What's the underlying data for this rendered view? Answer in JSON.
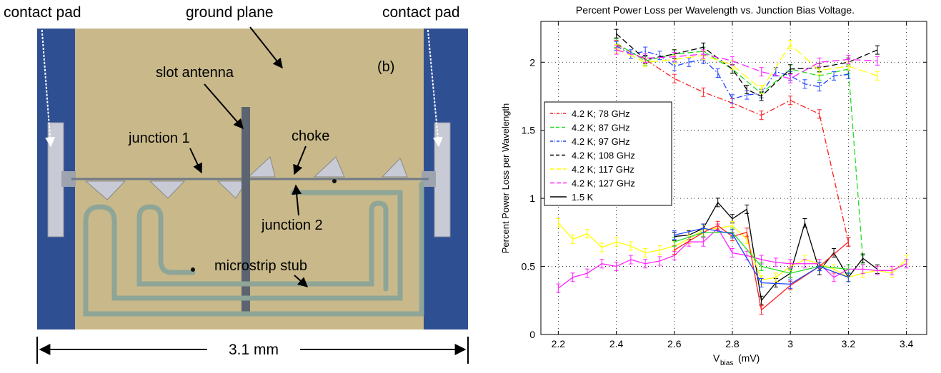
{
  "photo": {
    "panel_label": "(b)",
    "labels": {
      "contact_pad_left": "contact pad",
      "ground_plane": "ground plane",
      "contact_pad_right": "contact pad",
      "slot_antenna": "slot antenna",
      "junction_1": "junction 1",
      "choke": "choke",
      "junction_2": "junction 2",
      "microstrip_stub": "microstrip stub"
    },
    "scale_bar": "3.1 mm",
    "colors": {
      "substrate": "#c9b98a",
      "pad_blue": "#2f4f93",
      "metal": "#c8cbd6",
      "antenna": "#5b6470"
    }
  },
  "chart_data": {
    "type": "line",
    "title": "Percent Power Loss per Wavelength vs. Junction Bias Voltage.",
    "xlabel_main": "V",
    "xlabel_sub": "bias",
    "xlabel_unit": "(mV)",
    "ylabel": "Percent Power Loss per Wavelength",
    "xlim": [
      2.14,
      3.47
    ],
    "ylim": [
      0,
      2.3
    ],
    "xticks": [
      2.2,
      2.4,
      2.6,
      2.8,
      3,
      3.2,
      3.4
    ],
    "xtick_labels": [
      "2.2",
      "2.4",
      "2.6",
      "2.8",
      "3",
      "3.2",
      "3.4"
    ],
    "yticks": [
      0,
      0.5,
      1,
      1.5,
      2
    ],
    "ytick_labels": [
      "0",
      "0.5",
      "1",
      "1.5",
      "2"
    ],
    "grid": true,
    "legend_position": "left-middle",
    "series": [
      {
        "name": "4.2 K;   78 GHz",
        "color": "#ff2020",
        "dash": "8,3,2,3",
        "style": "dashdot",
        "x": [
          2.4,
          2.5,
          2.6,
          2.7,
          2.8,
          2.9,
          3.0,
          3.1,
          3.2
        ],
        "y": [
          2.13,
          2.02,
          1.88,
          1.78,
          1.7,
          1.61,
          1.72,
          1.62,
          0.68
        ]
      },
      {
        "name": "4.2 K;   87 GHz",
        "color": "#22dd22",
        "dash": "8,4",
        "style": "dashed",
        "x": [
          2.4,
          2.5,
          2.6,
          2.7,
          2.8,
          2.9,
          3.0,
          3.1,
          3.2,
          3.25
        ],
        "y": [
          2.14,
          2.01,
          2.06,
          2.08,
          1.95,
          1.77,
          1.95,
          1.9,
          1.95,
          0.55
        ]
      },
      {
        "name": "4.2 K;   97 GHz",
        "color": "#2244ff",
        "dash": "8,3,2,3",
        "style": "dashdot",
        "x": [
          2.4,
          2.45,
          2.5,
          2.55,
          2.6,
          2.65,
          2.7,
          2.75,
          2.8,
          2.85,
          2.9,
          2.95,
          3.0,
          3.05,
          3.1,
          3.15,
          3.2
        ],
        "y": [
          2.12,
          2.06,
          2.08,
          2.05,
          1.97,
          2.0,
          2.02,
          1.92,
          1.73,
          1.76,
          1.77,
          1.93,
          1.9,
          1.84,
          1.82,
          1.9,
          1.91
        ]
      },
      {
        "name": "4.2 K; 108 GHz",
        "color": "#000000",
        "dash": "8,4",
        "style": "dashed",
        "x": [
          2.4,
          2.5,
          2.6,
          2.7,
          2.8,
          2.85,
          2.9,
          3.0,
          3.1,
          3.2,
          3.3
        ],
        "y": [
          2.21,
          2.02,
          2.06,
          2.11,
          1.95,
          1.8,
          1.75,
          1.95,
          1.96,
          2.0,
          2.09
        ]
      },
      {
        "name": "4.2 K; 117 GHz",
        "color": "#ffff00",
        "dash": "12,5",
        "style": "dashed",
        "x": [
          2.4,
          2.5,
          2.6,
          2.7,
          2.8,
          2.9,
          3.0,
          3.1,
          3.2,
          3.3
        ],
        "y": [
          2.1,
          2.0,
          2.02,
          2.05,
          1.98,
          1.8,
          2.13,
          1.94,
          1.97,
          1.9
        ]
      },
      {
        "name": "4.2 K; 127 GHz",
        "color": "#ff22ff",
        "dash": "10,5",
        "style": "dashed",
        "x": [
          2.4,
          2.5,
          2.6,
          2.7,
          2.8,
          2.9,
          3.0,
          3.1,
          3.2,
          3.3
        ],
        "y": [
          2.09,
          2.03,
          2.04,
          2.06,
          2.01,
          1.93,
          1.88,
          2.0,
          2.02,
          2.01
        ]
      },
      {
        "name": "1.5 K",
        "color": "#000000",
        "dash": "",
        "style": "solid",
        "x": [
          2.6,
          2.65,
          2.7,
          2.75,
          2.8,
          2.85,
          2.9,
          2.95,
          3.0,
          3.05,
          3.1,
          3.15,
          3.2,
          3.25,
          3.3
        ],
        "y": [
          0.72,
          0.73,
          0.78,
          0.97,
          0.85,
          0.92,
          0.25,
          0.38,
          0.45,
          0.82,
          0.47,
          0.6,
          0.42,
          0.56,
          0.48
        ]
      },
      {
        "name": "",
        "color": "#ffff00",
        "dash": "",
        "style": "solid",
        "x": [
          2.2,
          2.25,
          2.3,
          2.35,
          2.4,
          2.45,
          2.5,
          2.55,
          2.6,
          2.65,
          2.7,
          2.75,
          2.8,
          2.85,
          2.9,
          2.95,
          3.0,
          3.05,
          3.1,
          3.15,
          3.2,
          3.25,
          3.3,
          3.35,
          3.4
        ],
        "y": [
          0.82,
          0.7,
          0.74,
          0.64,
          0.68,
          0.65,
          0.6,
          0.62,
          0.65,
          0.7,
          0.77,
          0.78,
          0.8,
          0.7,
          0.4,
          0.42,
          0.5,
          0.55,
          0.52,
          0.48,
          0.42,
          0.45,
          0.47,
          0.45,
          0.55
        ]
      },
      {
        "name": "",
        "color": "#ff22ff",
        "dash": "",
        "style": "solid",
        "x": [
          2.2,
          2.25,
          2.3,
          2.35,
          2.4,
          2.45,
          2.5,
          2.55,
          2.6,
          2.65,
          2.7,
          2.75,
          2.8,
          2.85,
          2.9,
          2.95,
          3.0,
          3.05,
          3.1,
          3.15,
          3.2,
          3.25,
          3.3,
          3.35,
          3.4
        ],
        "y": [
          0.34,
          0.42,
          0.45,
          0.52,
          0.5,
          0.55,
          0.52,
          0.54,
          0.58,
          0.68,
          0.68,
          0.78,
          0.6,
          0.58,
          0.55,
          0.53,
          0.52,
          0.52,
          0.52,
          0.42,
          0.48,
          0.48,
          0.47,
          0.47,
          0.52
        ]
      },
      {
        "name": "",
        "color": "#ff2020",
        "dash": "",
        "style": "solid",
        "x": [
          2.6,
          2.7,
          2.75,
          2.8,
          2.85,
          2.9,
          3.0,
          3.1,
          3.2
        ],
        "y": [
          0.62,
          0.75,
          0.8,
          0.72,
          0.75,
          0.18,
          0.36,
          0.5,
          0.68
        ]
      },
      {
        "name": "",
        "color": "#22dd22",
        "dash": "",
        "style": "solid",
        "x": [
          2.6,
          2.7,
          2.8,
          2.9,
          3.0,
          3.1,
          3.2
        ],
        "y": [
          0.68,
          0.75,
          0.75,
          0.5,
          0.45,
          0.5,
          0.48
        ]
      },
      {
        "name": "",
        "color": "#2244ff",
        "dash": "",
        "style": "solid",
        "x": [
          2.6,
          2.7,
          2.8,
          2.9,
          3.0,
          3.1,
          3.2
        ],
        "y": [
          0.73,
          0.78,
          0.74,
          0.38,
          0.37,
          0.5,
          0.42
        ]
      }
    ]
  }
}
